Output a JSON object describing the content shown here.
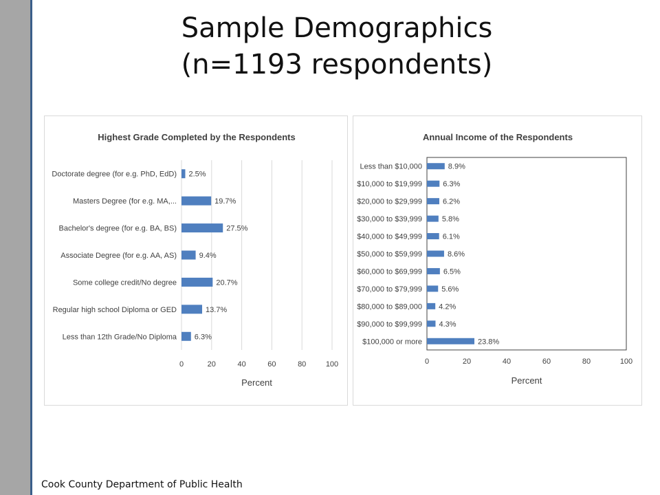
{
  "slide": {
    "title_line1": "Sample Demographics",
    "title_line2": "(n=1193 respondents)",
    "footer": "Cook County Department of Public Health"
  },
  "colors": {
    "bar": "#4f7fbf",
    "grid": "#d9d9d9",
    "text": "#404040",
    "sidebar": "#a6a6a6",
    "sidebar_edge": "#3b5f8a"
  },
  "chart_data": [
    {
      "type": "bar",
      "orientation": "horizontal",
      "title": "Highest Grade Completed by the Respondents",
      "xlabel": "Percent",
      "ylabel": "",
      "xlim": [
        0,
        100
      ],
      "xticks": [
        0,
        20,
        40,
        60,
        80,
        100
      ],
      "grid": true,
      "categories": [
        "Doctorate degree (for e.g. PhD, EdD)",
        "Masters Degree (for e.g. MA,...",
        "Bachelor's degree (for e.g. BA, BS)",
        "Associate Degree (for e.g. AA, AS)",
        "Some college credit/No degree",
        "Regular high school Diploma or GED",
        "Less than 12th Grade/No Diploma"
      ],
      "values": [
        2.5,
        19.7,
        27.5,
        9.4,
        20.7,
        13.7,
        6.3
      ],
      "data_labels": [
        "2.5%",
        "19.7%",
        "27.5%",
        "9.4%",
        "20.7%",
        "13.7%",
        "6.3%"
      ]
    },
    {
      "type": "bar",
      "orientation": "horizontal",
      "title": "Annual Income of the Respondents",
      "xlabel": "Percent",
      "ylabel": "",
      "xlim": [
        0,
        100
      ],
      "xticks": [
        0,
        20,
        40,
        60,
        80,
        100
      ],
      "grid": false,
      "categories": [
        "Less than $10,000",
        "$10,000 to $19,999",
        "$20,000 to $29,999",
        "$30,000 to $39,999",
        "$40,000 to $49,999",
        "$50,000 to $59,999",
        "$60,000 to $69,999",
        "$70,000 to $79,999",
        "$80,000 to $89,000",
        "$90,000 to $99,999",
        "$100,000 or more"
      ],
      "values": [
        8.9,
        6.3,
        6.2,
        5.8,
        6.1,
        8.6,
        6.5,
        5.6,
        4.2,
        4.3,
        23.8
      ],
      "data_labels": [
        "8.9%",
        "6.3%",
        "6.2%",
        "5.8%",
        "6.1%",
        "8.6%",
        "6.5%",
        "5.6%",
        "4.2%",
        "4.3%",
        "23.8%"
      ]
    }
  ]
}
